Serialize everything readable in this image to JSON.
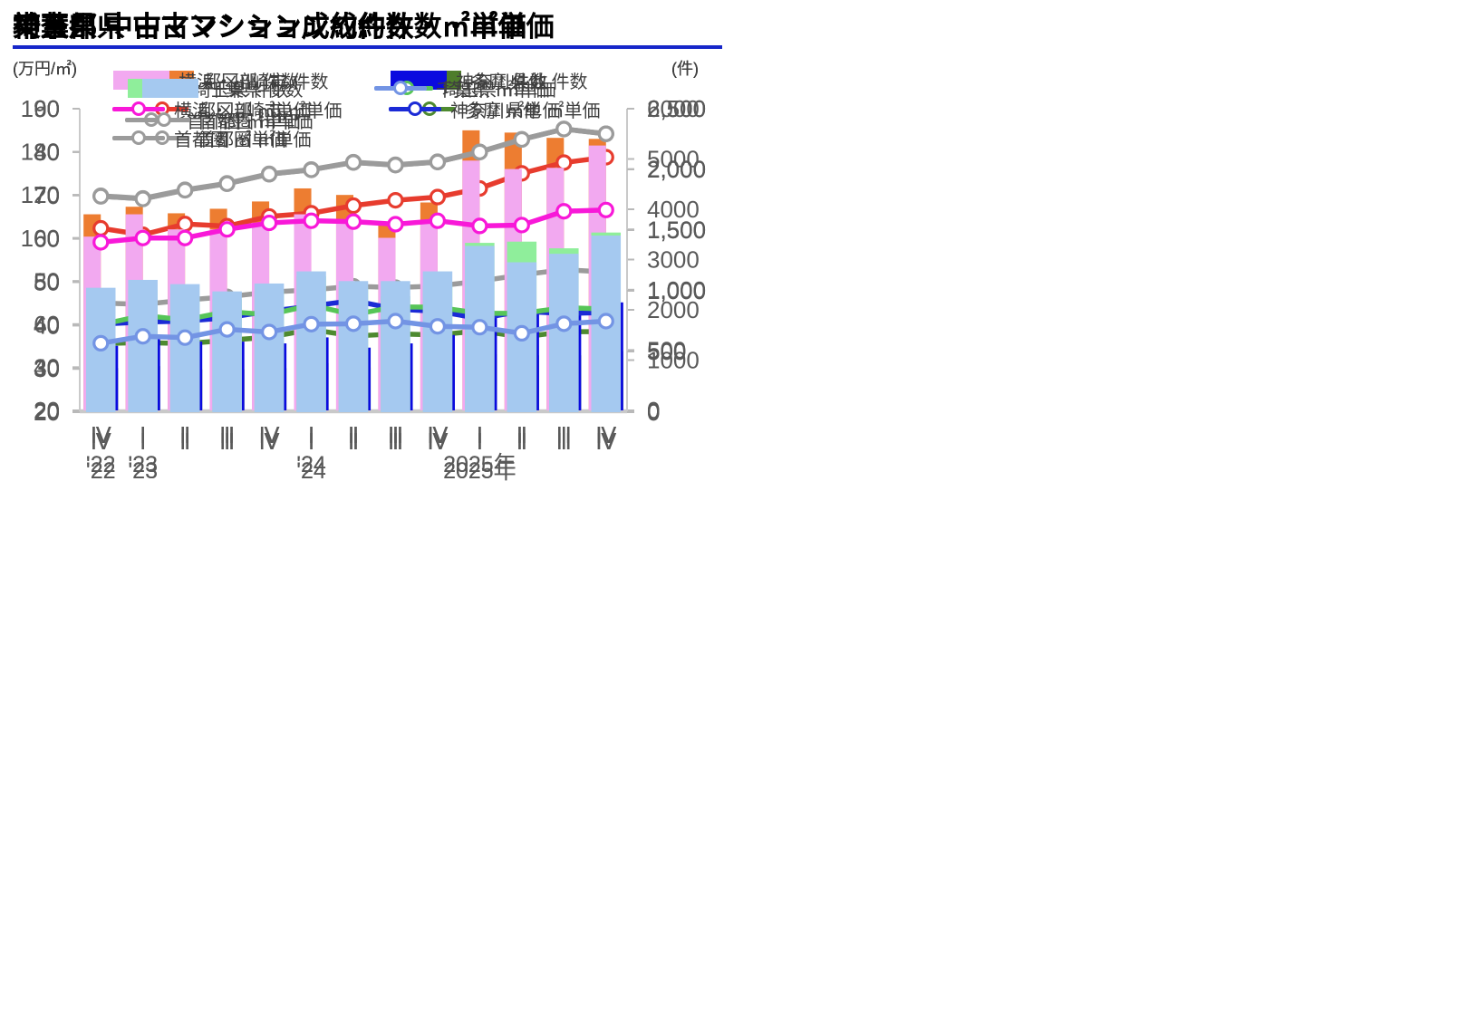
{
  "theme": {
    "title_underline": "#1626c9",
    "axis_line": "#c9c9c9",
    "tick_color": "#b9b9b9",
    "axis_text": "#595959",
    "legend_text": "#3f3f3f"
  },
  "x_axis": {
    "categories": [
      "Ⅳ",
      "Ⅰ",
      "Ⅱ",
      "Ⅲ",
      "Ⅳ",
      "Ⅰ",
      "Ⅱ",
      "Ⅲ",
      "Ⅳ",
      "Ⅰ",
      "Ⅱ",
      "Ⅲ",
      "Ⅳ"
    ],
    "year_labels": [
      {
        "position": 0,
        "label": "'22"
      },
      {
        "position": 1,
        "label": "'23"
      },
      {
        "position": 5,
        "label": "'24"
      },
      {
        "position": 9.0,
        "label": "2025年"
      }
    ]
  },
  "chart_data": [
    {
      "type": "bar+line",
      "id": "tokyo",
      "title": "東京都 中古マンション成約件数・㎡単価",
      "left_axis": {
        "unit": "(万円/㎡)",
        "min": 20,
        "max": 160,
        "tick_labels": [
          "20",
          "40",
          "60",
          "80",
          "100",
          "120",
          "140",
          "160"
        ]
      },
      "right_axis": {
        "unit": "(件)",
        "min": 0,
        "max": 6000,
        "tick_labels": [
          "0",
          "1000",
          "2000",
          "3000",
          "4000",
          "5000",
          "6000"
        ]
      },
      "bars": [
        {
          "name": "都区部 件数",
          "color": "#ed7d31",
          "values": [
            3900,
            4050,
            3920,
            4010,
            4155,
            4415,
            4285,
            3685,
            4135,
            5570,
            5525,
            5420,
            5400
          ]
        },
        {
          "name": "多摩 件数",
          "color": "#4e7d2b",
          "values": [
            840,
            880,
            815,
            815,
            840,
            940,
            855,
            815,
            900,
            1115,
            1095,
            1095,
            1180
          ]
        }
      ],
      "lines": [
        {
          "name": "首都圏 ㎡単価",
          "color": "#9b9b9b",
          "values": [
            69.8,
            69.2,
            71.2,
            72.7,
            74.9,
            75.9,
            77.6,
            77.0,
            77.7,
            80.0,
            82.9,
            85.3,
            84.2
          ]
        },
        {
          "name": "多摩 ㎡単価",
          "color": "#4e8a30",
          "values": [
            51,
            51.5,
            51,
            52.5,
            54,
            57.5,
            54.5,
            55.5,
            55,
            57,
            54,
            56.5,
            56.5
          ]
        },
        {
          "name": "都区部 ㎡単価",
          "color": "#e73c2e",
          "values": [
            104.5,
            101.5,
            106.5,
            105.5,
            110,
            111.5,
            115,
            117.5,
            119,
            123,
            130,
            135,
            137.5
          ]
        }
      ],
      "legend_rows": [
        [
          "bars.0",
          "bars.1"
        ],
        [
          "lines.2",
          "lines.1"
        ],
        [
          "lines.0"
        ]
      ]
    },
    {
      "type": "bar+line",
      "id": "kanagawa",
      "title": "神奈川県 中古マンション成約件数・㎡単価",
      "left_axis": {
        "unit": "(万円/㎡)",
        "min": 20,
        "max": 90,
        "tick_labels": [
          "20",
          "30",
          "40",
          "50",
          "60",
          "70",
          "80",
          "90"
        ]
      },
      "right_axis": {
        "unit": "(件)",
        "min": 0,
        "max": 2500,
        "tick_labels": [
          "0",
          "500",
          "1,000",
          "1,500",
          "2,000",
          "2,500"
        ]
      },
      "bars": [
        {
          "name": "横浜・川崎市 件数",
          "color": "#f2a9f0",
          "values": [
            1440,
            1625,
            1500,
            1500,
            1555,
            1625,
            1555,
            1430,
            1565,
            2070,
            2000,
            2010,
            2195
          ]
        },
        {
          "name": "神奈川県他 件数",
          "color": "#0a0adf",
          "values": [
            535,
            605,
            570,
            570,
            555,
            605,
            520,
            555,
            625,
            770,
            820,
            820,
            895
          ]
        }
      ],
      "lines": [
        {
          "name": "首都圏 ㎡単価",
          "color": "#9b9b9b",
          "values": [
            69.8,
            69.2,
            71.2,
            72.7,
            74.9,
            75.9,
            77.6,
            77.0,
            77.7,
            80.0,
            82.9,
            85.3,
            84.2
          ]
        },
        {
          "name": "横浜・川崎市 ㎡単価",
          "color": "#f818d8",
          "values": [
            59,
            60,
            60,
            62,
            63.5,
            64,
            63.8,
            63.2,
            64,
            62.8,
            63,
            66.2,
            66.5
          ]
        },
        {
          "name": "神奈川県他 ㎡単価",
          "color": "#1b2ad6",
          "values": [
            40,
            40.5,
            40.7,
            41.5,
            43,
            44.2,
            45.5,
            43.5,
            43,
            41.3,
            43,
            42.5,
            42.7
          ]
        }
      ],
      "legend_rows": [
        [
          "bars.0",
          "bars.1"
        ],
        [
          "lines.1",
          "lines.2"
        ],
        [
          "lines.0"
        ]
      ]
    },
    {
      "type": "bar+line",
      "id": "saitama",
      "title": "埼玉県 中古マンション成約件数・㎡単価",
      "left_axis": {
        "unit": "(万円/㎡)",
        "min": 20,
        "max": 90,
        "tick_labels": [
          "20",
          "30",
          "40",
          "50",
          "60",
          "70",
          "80",
          "90"
        ]
      },
      "right_axis": {
        "unit": "(件)",
        "min": 0,
        "max": 2500,
        "tick_labels": [
          "0",
          "500",
          "1,000",
          "1,500",
          "2,000",
          "2,500"
        ]
      },
      "bars": [
        {
          "name": "埼玉県 件数",
          "color": "#8fee9b",
          "values": [
            975,
            1010,
            950,
            930,
            1000,
            1120,
            1030,
            955,
            1045,
            1395,
            1405,
            1350,
            1480
          ]
        }
      ],
      "lines": [
        {
          "name": "首都圏 ㎡単価",
          "color": "#9b9b9b",
          "values": [
            69.8,
            69.2,
            71.2,
            72.7,
            74.9,
            75.9,
            77.6,
            77.0,
            77.7,
            80.0,
            82.9,
            85.3,
            84.2
          ]
        },
        {
          "name": "埼玉県 ㎡単価",
          "color": "#57c558",
          "values": [
            40.2,
            42.3,
            41.3,
            43.2,
            42.5,
            44.7,
            42.5,
            44.3,
            44.2,
            42.8,
            42.8,
            44.1,
            43.8
          ]
        }
      ],
      "legend_rows": [
        [
          "bars.0",
          "lines.1"
        ],
        [
          "lines.0"
        ]
      ]
    },
    {
      "type": "bar+line",
      "id": "chiba",
      "title": "千葉県 中古マンション成約件数・㎡単価",
      "left_axis": {
        "unit": "(万円/㎡)",
        "min": 20,
        "max": 90,
        "tick_labels": [
          "20",
          "30",
          "40",
          "50",
          "60",
          "70",
          "80",
          "90"
        ]
      },
      "right_axis": {
        "unit": "(件)",
        "min": 0,
        "max": 2500,
        "tick_labels": [
          "0",
          "500",
          "1,000",
          "1,500",
          "2,000",
          "2,500"
        ]
      },
      "bars": [
        {
          "name": "千葉県 件数",
          "color": "#a5c9f0",
          "values": [
            1025,
            1090,
            1055,
            995,
            1060,
            1160,
            1080,
            1080,
            1160,
            1370,
            1235,
            1305,
            1455
          ]
        }
      ],
      "lines": [
        {
          "name": "首都圏 ㎡単価",
          "color": "#9b9b9b",
          "values": [
            69.8,
            69.2,
            71.2,
            72.7,
            74.9,
            75.9,
            77.6,
            77.0,
            77.7,
            80.0,
            82.9,
            85.3,
            84.2
          ]
        },
        {
          "name": "千葉県 ㎡単価",
          "color": "#7394e4",
          "values": [
            35.9,
            37.5,
            37.2,
            39.1,
            38.5,
            40.3,
            40.4,
            41,
            39.8,
            39.6,
            38.2,
            40.4,
            41
          ]
        }
      ],
      "legend_rows": [
        [
          "bars.0",
          "lines.1"
        ],
        [
          "lines.0"
        ]
      ]
    }
  ]
}
